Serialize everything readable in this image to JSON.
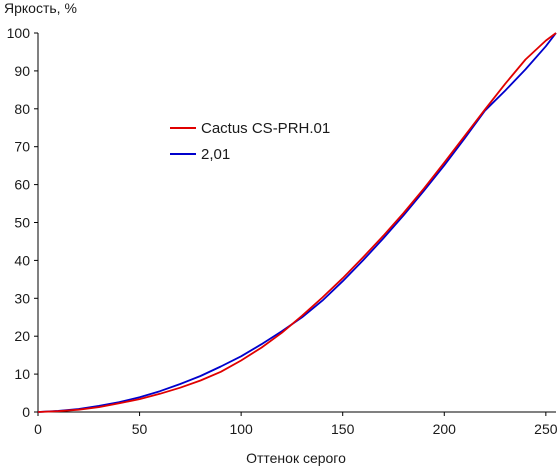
{
  "chart_data": {
    "type": "line",
    "title": "",
    "xlabel": "Оттенок серого",
    "ylabel": "Яркость, %",
    "xlim": [
      0,
      255
    ],
    "ylim": [
      0,
      100
    ],
    "xticks": [
      0,
      50,
      100,
      150,
      200,
      250
    ],
    "yticks": [
      0,
      10,
      20,
      30,
      40,
      50,
      60,
      70,
      80,
      90,
      100
    ],
    "grid": false,
    "legend_position": "upper-left",
    "series": [
      {
        "name": "Cactus CS-PRH.01",
        "color": "#e00000",
        "x": [
          0,
          10,
          20,
          30,
          40,
          50,
          60,
          70,
          80,
          90,
          100,
          110,
          120,
          130,
          140,
          150,
          160,
          170,
          180,
          190,
          200,
          210,
          220,
          230,
          240,
          250,
          255
        ],
        "y": [
          0,
          0.2,
          0.6,
          1.3,
          2.3,
          3.4,
          4.8,
          6.4,
          8.3,
          10.6,
          13.6,
          17.0,
          20.9,
          25.4,
          30.2,
          35.3,
          40.8,
          46.5,
          52.5,
          59.0,
          65.8,
          72.8,
          79.8,
          86.6,
          93.0,
          98.0,
          100
        ]
      },
      {
        "name": "2,01",
        "color": "#0000cc",
        "x": [
          0,
          10,
          20,
          30,
          40,
          50,
          60,
          70,
          80,
          90,
          100,
          110,
          120,
          130,
          140,
          150,
          160,
          170,
          180,
          190,
          200,
          210,
          220,
          230,
          240,
          250,
          255
        ],
        "y": [
          0,
          0.3,
          0.8,
          1.6,
          2.6,
          3.9,
          5.5,
          7.4,
          9.5,
          12.0,
          14.7,
          17.9,
          21.3,
          25.0,
          29.4,
          34.5,
          40.0,
          45.8,
          51.9,
          58.4,
          65.1,
          72.2,
          79.5,
          84.8,
          90.4,
          96.5,
          100
        ]
      }
    ]
  }
}
